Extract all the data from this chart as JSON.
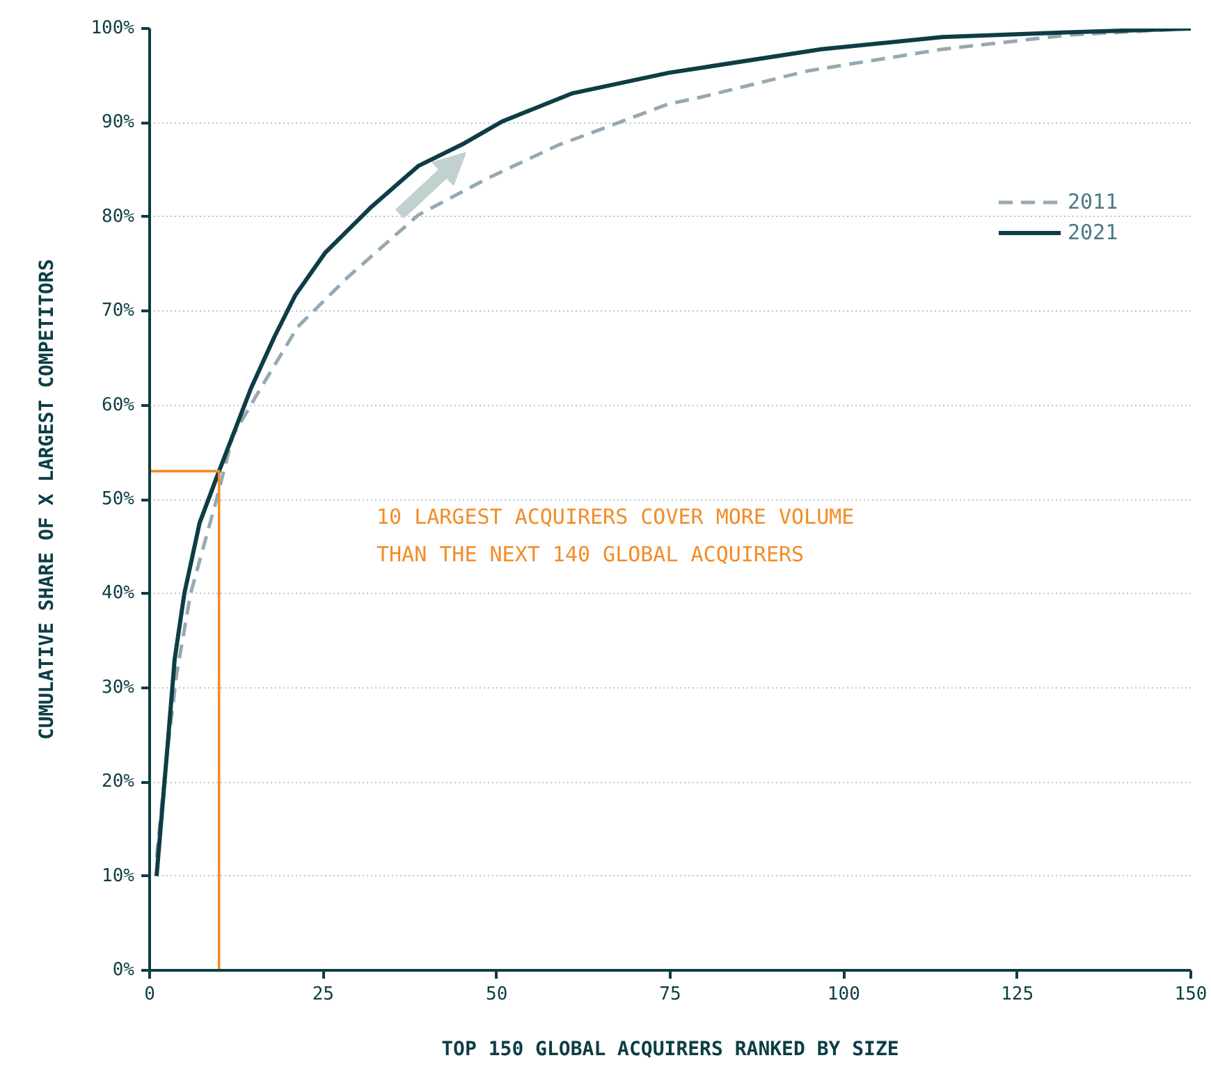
{
  "chart_data": {
    "type": "line",
    "xlabel": "TOP 150 GLOBAL ACQUIRERS RANKED BY SIZE",
    "ylabel": "CUMULATIVE SHARE OF X LARGEST COMPETITORS",
    "xlim": [
      0,
      150
    ],
    "xticks": [
      0,
      25,
      50,
      75,
      100,
      125,
      150
    ],
    "ylim": [
      0,
      100
    ],
    "yticks": [
      {
        "value": 0,
        "label": "0%"
      },
      {
        "value": 10,
        "label": "10%"
      },
      {
        "value": 20,
        "label": "20%"
      },
      {
        "value": 30,
        "label": "30%"
      },
      {
        "value": 40,
        "label": "40%"
      },
      {
        "value": 50,
        "label": "50%"
      },
      {
        "value": 60,
        "label": "60%"
      },
      {
        "value": 70,
        "label": "70%"
      },
      {
        "value": 80,
        "label": "80%"
      },
      {
        "value": 90,
        "label": "90%"
      },
      {
        "value": 100,
        "label": "100%"
      }
    ],
    "grid": "y",
    "legend": "top right",
    "series": [
      {
        "name": "2011",
        "color": "#95a9b2",
        "line_style": "dashed",
        "x": [
          1,
          2.3,
          3.9,
          5.9,
          9.6,
          12,
          16,
          21.3,
          28.7,
          38.7,
          48.7,
          58.8,
          74.8,
          78.8,
          94.8,
          114.2,
          132.3,
          150
        ],
        "values": [
          12,
          21.6,
          31.5,
          40,
          49.9,
          56.8,
          61.8,
          68.3,
          73.7,
          80.2,
          84.1,
          87.6,
          92,
          92.6,
          95.5,
          97.8,
          99.3,
          100
        ]
      },
      {
        "name": "2021",
        "color": "#0d3d45",
        "line_style": "solid",
        "x": [
          1,
          2.6,
          3.6,
          5,
          7.2,
          10,
          14.6,
          18,
          21,
          25.3,
          32,
          38.7,
          45.3,
          50.7,
          60.8,
          74.8,
          96.8,
          114.2,
          132.3,
          150
        ],
        "values": [
          10,
          24,
          33,
          40,
          47.5,
          53,
          61.8,
          67.3,
          71.7,
          76.2,
          81.1,
          85.4,
          87.8,
          90.1,
          93.1,
          95.3,
          97.8,
          99.1,
          99.6,
          100
        ]
      },
      {
        "color": "#f28c28",
        "line_style": "solid",
        "x": [
          0,
          10,
          10
        ],
        "values": [
          53,
          53,
          0
        ]
      }
    ],
    "annotations": [
      "10 LARGEST ACQUIRERS COVER MORE VOLUME\nTHAN THE NEXT 140 GLOBAL ACQUIRERS"
    ]
  }
}
